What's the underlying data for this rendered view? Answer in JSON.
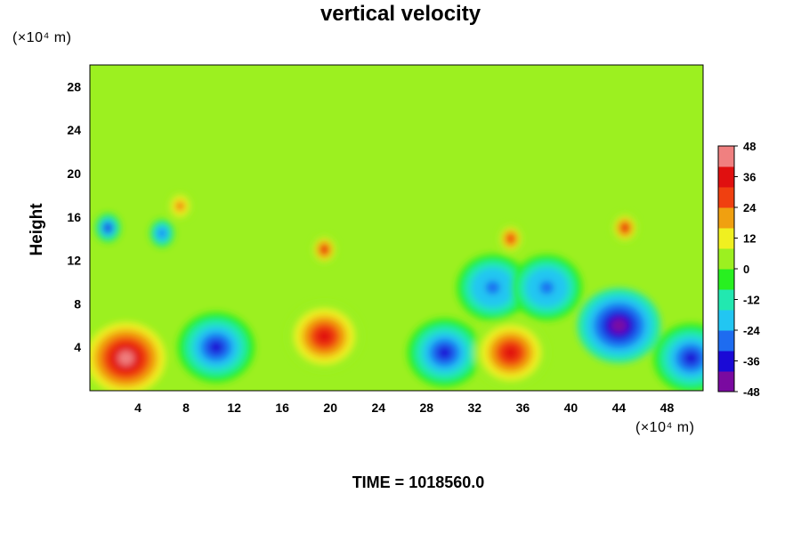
{
  "chart_data": {
    "type": "heatmap",
    "title": "vertical velocity",
    "ylabel": "Height",
    "xlabel": "",
    "x_unit": "(×10⁴ m)",
    "y_unit": "(×10⁴ m)",
    "footer": "TIME = 1018560.0",
    "xlim": [
      0,
      51
    ],
    "ylim": [
      0,
      30
    ],
    "x_ticks": [
      4,
      8,
      12,
      16,
      20,
      24,
      28,
      32,
      36,
      40,
      44,
      48
    ],
    "y_ticks": [
      4,
      8,
      12,
      16,
      20,
      24,
      28
    ],
    "colorbar": {
      "min": -48,
      "max": 48,
      "ticks": [
        48,
        36,
        24,
        12,
        0,
        -12,
        -24,
        -36,
        -48
      ],
      "colors": [
        "#7a0aa0",
        "#1a0ad6",
        "#1e6cf0",
        "#22c6f2",
        "#22e8b0",
        "#28f020",
        "#9cf020",
        "#f0f020",
        "#f0a010",
        "#f04010",
        "#e01010",
        "#f08080"
      ]
    },
    "features": [
      {
        "x": 3.0,
        "y": 3.0,
        "value": 42
      },
      {
        "x": 10.5,
        "y": 4.0,
        "value": -38
      },
      {
        "x": 19.5,
        "y": 5.0,
        "value": 35
      },
      {
        "x": 29.5,
        "y": 3.5,
        "value": -34
      },
      {
        "x": 35.0,
        "y": 3.5,
        "value": 34
      },
      {
        "x": 44.0,
        "y": 6.0,
        "value": -48
      },
      {
        "x": 50.0,
        "y": 3.0,
        "value": -36
      },
      {
        "x": 1.5,
        "y": 15.0,
        "value": -36
      },
      {
        "x": 6.0,
        "y": 14.5,
        "value": -30
      },
      {
        "x": 7.5,
        "y": 17.0,
        "value": 24
      },
      {
        "x": 19.5,
        "y": 13.0,
        "value": 32
      },
      {
        "x": 35.0,
        "y": 14.0,
        "value": 30
      },
      {
        "x": 44.5,
        "y": 15.0,
        "value": 36
      },
      {
        "x": 33.5,
        "y": 9.5,
        "value": -30
      },
      {
        "x": 38.0,
        "y": 9.5,
        "value": -28
      }
    ]
  }
}
